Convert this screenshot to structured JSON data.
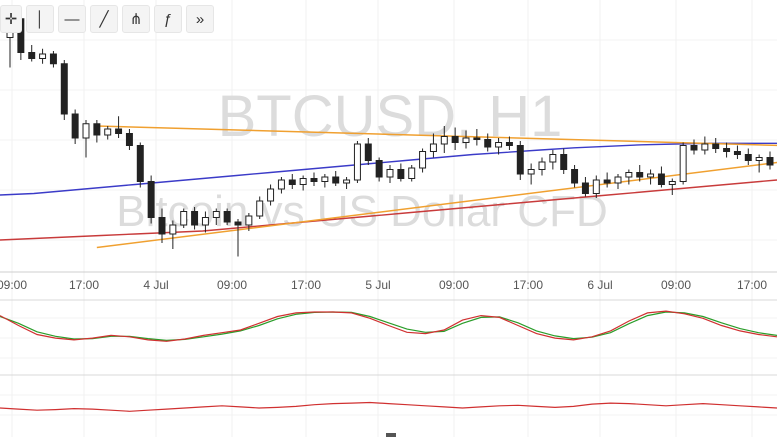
{
  "toolbar": {
    "tools": [
      {
        "name": "crosshair-tool",
        "icon": "crosshair-icon",
        "glyph": "✛"
      },
      {
        "name": "vertical-line-tool",
        "icon": "vertical-line-icon",
        "glyph": "│"
      },
      {
        "name": "horizontal-line-tool",
        "icon": "horizontal-line-icon",
        "glyph": "—"
      },
      {
        "name": "trend-line-tool",
        "icon": "trend-line-icon",
        "glyph": "╱"
      },
      {
        "name": "pitchfork-tool",
        "icon": "pitchfork-icon",
        "glyph": "⋔"
      },
      {
        "name": "fib-tool",
        "icon": "fib-icon",
        "glyph": "ƒ"
      },
      {
        "name": "more-tools-button",
        "icon": "double-chevron-right-icon",
        "glyph": "»"
      }
    ]
  },
  "watermark": {
    "symbol": "BTCUSD, H1",
    "description": "Bitcoin vs US Dollar CFD"
  },
  "chart_data": {
    "type": "candlestick",
    "x_ticks": [
      "09:00",
      "17:00",
      "4 Jul",
      "09:00",
      "17:00",
      "5 Jul",
      "09:00",
      "17:00",
      "6 Jul",
      "09:00",
      "17:00"
    ],
    "grid": true,
    "candles": [
      [
        2580,
        2620,
        2540,
        2605
      ],
      [
        2605,
        2612,
        2550,
        2560
      ],
      [
        2560,
        2570,
        2548,
        2552
      ],
      [
        2552,
        2565,
        2545,
        2558
      ],
      [
        2558,
        2562,
        2540,
        2545
      ],
      [
        2545,
        2550,
        2470,
        2478
      ],
      [
        2478,
        2484,
        2438,
        2446
      ],
      [
        2446,
        2470,
        2420,
        2465
      ],
      [
        2465,
        2470,
        2440,
        2450
      ],
      [
        2450,
        2462,
        2444,
        2458
      ],
      [
        2458,
        2475,
        2446,
        2452
      ],
      [
        2452,
        2458,
        2430,
        2436
      ],
      [
        2436,
        2440,
        2380,
        2388
      ],
      [
        2388,
        2396,
        2332,
        2340
      ],
      [
        2340,
        2352,
        2306,
        2318
      ],
      [
        2318,
        2336,
        2298,
        2330
      ],
      [
        2330,
        2352,
        2326,
        2348
      ],
      [
        2348,
        2354,
        2324,
        2330
      ],
      [
        2330,
        2348,
        2320,
        2340
      ],
      [
        2340,
        2352,
        2330,
        2348
      ],
      [
        2348,
        2352,
        2330,
        2334
      ],
      [
        2334,
        2338,
        2288,
        2330
      ],
      [
        2330,
        2346,
        2322,
        2342
      ],
      [
        2342,
        2368,
        2338,
        2362
      ],
      [
        2362,
        2384,
        2356,
        2378
      ],
      [
        2378,
        2394,
        2372,
        2390
      ],
      [
        2390,
        2398,
        2378,
        2384
      ],
      [
        2384,
        2396,
        2376,
        2392
      ],
      [
        2392,
        2400,
        2382,
        2388
      ],
      [
        2388,
        2398,
        2380,
        2394
      ],
      [
        2394,
        2402,
        2382,
        2386
      ],
      [
        2386,
        2394,
        2378,
        2390
      ],
      [
        2390,
        2442,
        2386,
        2438
      ],
      [
        2438,
        2446,
        2410,
        2416
      ],
      [
        2416,
        2420,
        2388,
        2394
      ],
      [
        2394,
        2410,
        2386,
        2404
      ],
      [
        2404,
        2412,
        2388,
        2392
      ],
      [
        2392,
        2410,
        2388,
        2406
      ],
      [
        2406,
        2432,
        2400,
        2428
      ],
      [
        2428,
        2452,
        2420,
        2438
      ],
      [
        2438,
        2462,
        2426,
        2448
      ],
      [
        2448,
        2460,
        2430,
        2440
      ],
      [
        2440,
        2456,
        2432,
        2446
      ],
      [
        2446,
        2458,
        2436,
        2444
      ],
      [
        2444,
        2452,
        2428,
        2434
      ],
      [
        2434,
        2446,
        2424,
        2440
      ],
      [
        2440,
        2448,
        2430,
        2436
      ],
      [
        2436,
        2442,
        2390,
        2398
      ],
      [
        2398,
        2412,
        2384,
        2404
      ],
      [
        2404,
        2420,
        2396,
        2414
      ],
      [
        2414,
        2430,
        2404,
        2424
      ],
      [
        2424,
        2432,
        2398,
        2404
      ],
      [
        2404,
        2410,
        2380,
        2386
      ],
      [
        2386,
        2394,
        2368,
        2372
      ],
      [
        2372,
        2396,
        2366,
        2390
      ],
      [
        2390,
        2400,
        2380,
        2386
      ],
      [
        2386,
        2398,
        2378,
        2394
      ],
      [
        2394,
        2404,
        2384,
        2400
      ],
      [
        2400,
        2410,
        2388,
        2394
      ],
      [
        2394,
        2404,
        2384,
        2398
      ],
      [
        2398,
        2408,
        2380,
        2384
      ],
      [
        2384,
        2392,
        2370,
        2388
      ],
      [
        2388,
        2440,
        2384,
        2436
      ],
      [
        2436,
        2444,
        2424,
        2430
      ],
      [
        2430,
        2448,
        2424,
        2438
      ],
      [
        2438,
        2446,
        2426,
        2432
      ],
      [
        2432,
        2440,
        2420,
        2428
      ],
      [
        2428,
        2436,
        2418,
        2424
      ],
      [
        2424,
        2432,
        2410,
        2416
      ],
      [
        2416,
        2424,
        2400,
        2420
      ],
      [
        2420,
        2428,
        2404,
        2410
      ]
    ],
    "ma_blue": [
      2370,
      2372,
      2376,
      2380,
      2384,
      2388,
      2392,
      2396,
      2400,
      2404,
      2408,
      2412,
      2416,
      2420,
      2424,
      2427,
      2430,
      2433,
      2435,
      2437,
      2438,
      2439,
      2439,
      2439
    ],
    "ma_red": [
      2310,
      2312,
      2314,
      2316,
      2318,
      2320,
      2322,
      2326,
      2330,
      2334,
      2338,
      2342,
      2346,
      2350,
      2354,
      2358,
      2362,
      2366,
      2370,
      2374,
      2378,
      2382,
      2386,
      2390
    ],
    "trend_lines": [
      {
        "start": [
          8,
          2462
        ],
        "end": [
          71,
          2436
        ]
      },
      {
        "start": [
          8,
          2300
        ],
        "end": [
          71,
          2414
        ]
      }
    ],
    "stoch_k": [
      72,
      50,
      30,
      22,
      18,
      22,
      28,
      25,
      18,
      15,
      20,
      28,
      34,
      40,
      55,
      70,
      78,
      80,
      80,
      78,
      66,
      50,
      35,
      32,
      40,
      62,
      72,
      68,
      50,
      32,
      22,
      18,
      25,
      38,
      60,
      78,
      82,
      76,
      66,
      50,
      38,
      30,
      25
    ],
    "stoch_d": [
      70,
      55,
      36,
      26,
      20,
      21,
      26,
      26,
      21,
      17,
      19,
      25,
      31,
      38,
      50,
      65,
      75,
      79,
      80,
      79,
      70,
      56,
      42,
      35,
      37,
      55,
      68,
      69,
      56,
      38,
      27,
      21,
      24,
      34,
      54,
      72,
      80,
      78,
      70,
      56,
      43,
      34,
      28
    ],
    "rsi": [
      40,
      38,
      36,
      37,
      39,
      38,
      36,
      34,
      36,
      38,
      40,
      42,
      44,
      42,
      40,
      41,
      43,
      46,
      48,
      49,
      50,
      48,
      46,
      44,
      42,
      40,
      42,
      44,
      45,
      43,
      41,
      43,
      47,
      49,
      48,
      46,
      44,
      46,
      48,
      46,
      44,
      42,
      40
    ]
  }
}
